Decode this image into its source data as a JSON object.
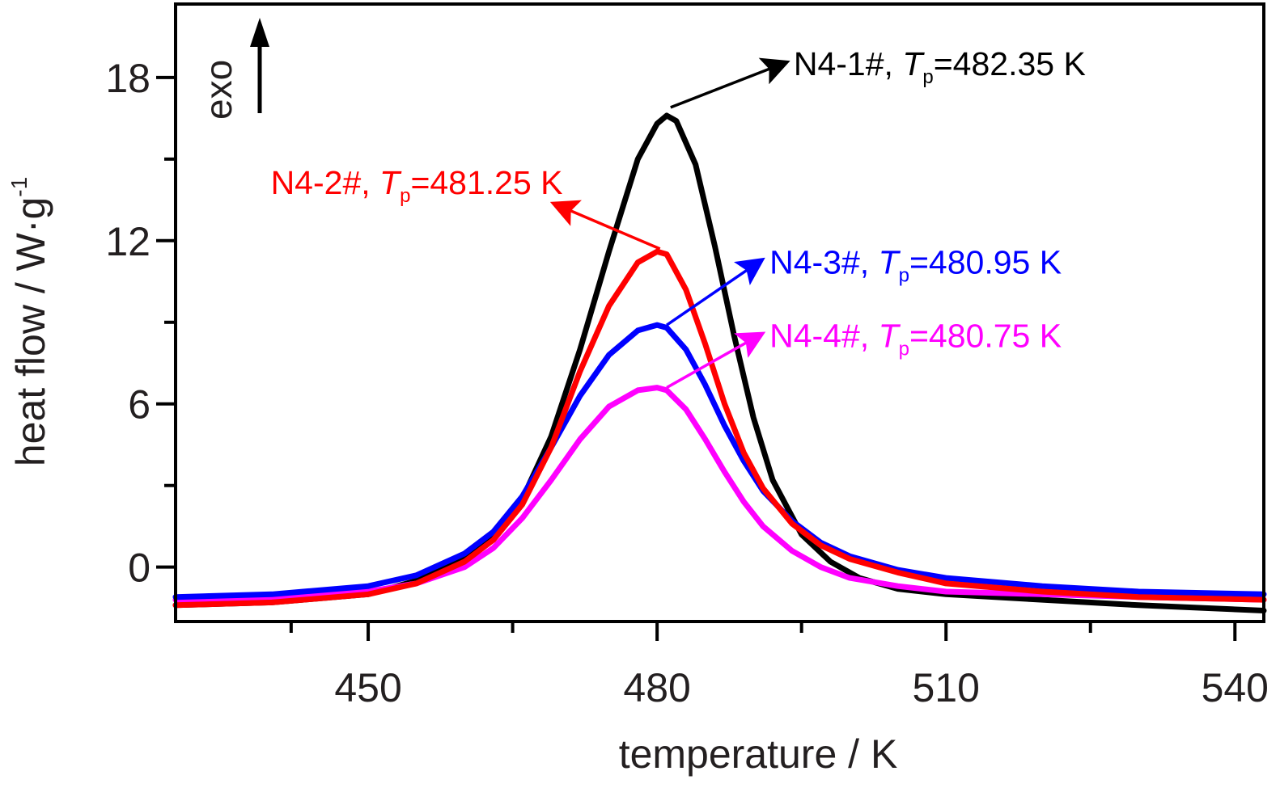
{
  "chart_data": {
    "type": "line",
    "xlabel": "temperature / K",
    "ylabel_main": "heat flow / W·g",
    "ylabel_sup": "-1",
    "xlim": [
      430,
      543
    ],
    "ylim": [
      -2,
      20.7
    ],
    "xticks_major": [
      450,
      480,
      510,
      540
    ],
    "xticks_minor": [
      442,
      465,
      495,
      525
    ],
    "yticks_major": [
      0,
      6,
      12,
      18
    ],
    "yticks_minor": [
      3,
      9,
      15
    ],
    "grid": false,
    "exo_label": "exo",
    "series": [
      {
        "name": "N4-1#",
        "color": "#000000",
        "tp_label": "482.35 K",
        "points": [
          [
            430,
            -1.4
          ],
          [
            440,
            -1.3
          ],
          [
            450,
            -1.0
          ],
          [
            455,
            -0.5
          ],
          [
            460,
            0.3
          ],
          [
            463,
            1.1
          ],
          [
            466,
            2.5
          ],
          [
            469,
            4.8
          ],
          [
            472,
            8.0
          ],
          [
            475,
            11.6
          ],
          [
            478,
            15.0
          ],
          [
            480,
            16.3
          ],
          [
            481,
            16.6
          ],
          [
            482,
            16.4
          ],
          [
            484,
            14.8
          ],
          [
            486,
            11.8
          ],
          [
            488,
            8.5
          ],
          [
            490,
            5.5
          ],
          [
            492,
            3.2
          ],
          [
            495,
            1.2
          ],
          [
            498,
            0.2
          ],
          [
            501,
            -0.4
          ],
          [
            505,
            -0.8
          ],
          [
            510,
            -1.0
          ],
          [
            520,
            -1.2
          ],
          [
            530,
            -1.4
          ],
          [
            543,
            -1.6
          ]
        ]
      },
      {
        "name": "N4-2#",
        "color": "#ff0000",
        "tp_label": "481.25 K",
        "points": [
          [
            430,
            -1.4
          ],
          [
            440,
            -1.3
          ],
          [
            450,
            -1.0
          ],
          [
            455,
            -0.6
          ],
          [
            460,
            0.2
          ],
          [
            463,
            1.0
          ],
          [
            466,
            2.3
          ],
          [
            469,
            4.4
          ],
          [
            472,
            7.2
          ],
          [
            475,
            9.6
          ],
          [
            478,
            11.2
          ],
          [
            480,
            11.6
          ],
          [
            481,
            11.5
          ],
          [
            483,
            10.2
          ],
          [
            485,
            8.2
          ],
          [
            487,
            6.0
          ],
          [
            489,
            4.2
          ],
          [
            491,
            2.9
          ],
          [
            494,
            1.6
          ],
          [
            497,
            0.8
          ],
          [
            500,
            0.3
          ],
          [
            505,
            -0.2
          ],
          [
            510,
            -0.6
          ],
          [
            520,
            -0.9
          ],
          [
            530,
            -1.1
          ],
          [
            543,
            -1.2
          ]
        ]
      },
      {
        "name": "N4-3#",
        "color": "#0000ff",
        "tp_label": "480.95 K",
        "points": [
          [
            430,
            -1.1
          ],
          [
            440,
            -1.0
          ],
          [
            450,
            -0.7
          ],
          [
            455,
            -0.3
          ],
          [
            460,
            0.5
          ],
          [
            463,
            1.3
          ],
          [
            466,
            2.6
          ],
          [
            469,
            4.4
          ],
          [
            472,
            6.3
          ],
          [
            475,
            7.8
          ],
          [
            478,
            8.7
          ],
          [
            480,
            8.9
          ],
          [
            481,
            8.8
          ],
          [
            483,
            8.0
          ],
          [
            485,
            6.7
          ],
          [
            487,
            5.2
          ],
          [
            489,
            3.9
          ],
          [
            491,
            2.8
          ],
          [
            494,
            1.7
          ],
          [
            497,
            0.9
          ],
          [
            500,
            0.4
          ],
          [
            505,
            -0.1
          ],
          [
            510,
            -0.4
          ],
          [
            520,
            -0.7
          ],
          [
            530,
            -0.9
          ],
          [
            543,
            -1.0
          ]
        ]
      },
      {
        "name": "N4-4#",
        "color": "#ff00ff",
        "tp_label": "480.75 K",
        "points": [
          [
            430,
            -1.2
          ],
          [
            440,
            -1.1
          ],
          [
            450,
            -0.9
          ],
          [
            455,
            -0.6
          ],
          [
            460,
            0.0
          ],
          [
            463,
            0.7
          ],
          [
            466,
            1.8
          ],
          [
            469,
            3.2
          ],
          [
            472,
            4.7
          ],
          [
            475,
            5.9
          ],
          [
            478,
            6.5
          ],
          [
            480,
            6.6
          ],
          [
            481,
            6.5
          ],
          [
            483,
            5.8
          ],
          [
            485,
            4.7
          ],
          [
            487,
            3.5
          ],
          [
            489,
            2.4
          ],
          [
            491,
            1.5
          ],
          [
            494,
            0.6
          ],
          [
            497,
            0.0
          ],
          [
            500,
            -0.4
          ],
          [
            505,
            -0.7
          ],
          [
            510,
            -0.9
          ],
          [
            520,
            -1.0
          ],
          [
            530,
            -1.1
          ],
          [
            543,
            -1.2
          ]
        ]
      }
    ],
    "annotations": [
      {
        "series": 0,
        "label_prefix": "N4-1#, ",
        "symbol": "T",
        "sub": "p",
        "eq_value": "=482.35 K",
        "tip": [
          481.4,
          16.9
        ],
        "head": [
          493,
          18.5
        ]
      },
      {
        "series": 1,
        "label_prefix": "N4-2#, ",
        "symbol": "T",
        "sub": "p",
        "eq_value": "=481.25 K",
        "tip": [
          480.3,
          11.7
        ],
        "head": [
          469.7,
          13.3
        ]
      },
      {
        "series": 2,
        "label_prefix": "N4-3#, ",
        "symbol": "T",
        "sub": "p",
        "eq_value": "=480.95 K",
        "tip": [
          481.0,
          8.9
        ],
        "head": [
          490.5,
          11.2
        ]
      },
      {
        "series": 3,
        "label_prefix": "N4-4#, ",
        "symbol": "T",
        "sub": "p",
        "eq_value": "=480.75 K",
        "tip": [
          481.0,
          6.6
        ],
        "head": [
          490.5,
          8.5
        ]
      }
    ]
  }
}
